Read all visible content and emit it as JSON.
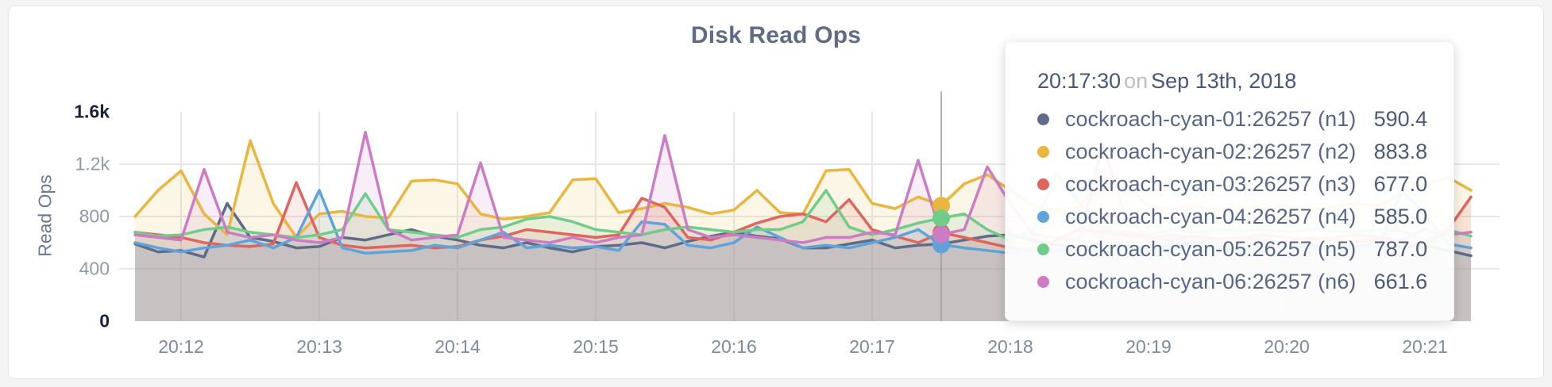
{
  "page": {
    "background": "#f4f4f5",
    "card_background": "#ffffff",
    "card_border": "#e3e3e5"
  },
  "chart_data": {
    "type": "area",
    "title": "Disk Read Ops",
    "ylabel": "Read Ops",
    "xlabel": "",
    "ylim": [
      0,
      1600
    ],
    "grid": true,
    "y_ticks": [
      {
        "value": 0,
        "label": "0",
        "emphasized": true
      },
      {
        "value": 400,
        "label": "400",
        "emphasized": false
      },
      {
        "value": 800,
        "label": "800",
        "emphasized": false
      },
      {
        "value": 1200,
        "label": "1.2k",
        "emphasized": false
      },
      {
        "value": 1600,
        "label": "1.6k",
        "emphasized": true
      }
    ],
    "x_tick_labels": [
      "20:12",
      "20:13",
      "20:14",
      "20:15",
      "20:16",
      "20:17",
      "20:18",
      "20:19",
      "20:20",
      "20:21"
    ],
    "x_interval_seconds": 10,
    "x_first_tick_index": 2,
    "x_ticks_every_n_points": 6,
    "hover_index": 35,
    "hover_time": "20:17:30",
    "series": [
      {
        "name": "cockroach-cyan-01:26257 (n1)",
        "color": "#5F6C87",
        "values": [
          590,
          530,
          540,
          490,
          900,
          640,
          610,
          560,
          570,
          640,
          620,
          660,
          700,
          650,
          620,
          580,
          560,
          600,
          560,
          530,
          570,
          580,
          600,
          560,
          610,
          650,
          680,
          650,
          630,
          560,
          560,
          590,
          620,
          560,
          580,
          590,
          620,
          650,
          660,
          620,
          580,
          560,
          590,
          570,
          560,
          580,
          600,
          570,
          560,
          590,
          610,
          580,
          560,
          570,
          590,
          560,
          580,
          540,
          500
        ]
      },
      {
        "name": "cockroach-cyan-02:26257 (n2)",
        "color": "#E9B63F",
        "values": [
          800,
          1000,
          1150,
          820,
          660,
          1380,
          900,
          640,
          820,
          840,
          800,
          790,
          1070,
          1080,
          1050,
          820,
          780,
          800,
          830,
          1080,
          1090,
          830,
          860,
          900,
          870,
          820,
          850,
          1000,
          830,
          820,
          1150,
          1160,
          900,
          860,
          950,
          884,
          1050,
          1120,
          1000,
          880,
          850,
          870,
          1100,
          1050,
          880,
          860,
          880,
          850,
          870,
          860,
          880,
          850,
          870,
          900,
          880,
          980,
          1050,
          1100,
          1000
        ]
      },
      {
        "name": "cockroach-cyan-03:26257 (n3)",
        "color": "#DF655E",
        "values": [
          680,
          660,
          640,
          600,
          580,
          570,
          590,
          1060,
          640,
          580,
          560,
          570,
          580,
          560,
          570,
          620,
          650,
          700,
          680,
          660,
          640,
          660,
          940,
          870,
          640,
          620,
          680,
          750,
          800,
          820,
          760,
          930,
          700,
          650,
          600,
          677,
          640,
          600,
          560,
          540,
          620,
          700,
          680,
          660,
          640,
          620,
          650,
          630,
          640,
          620,
          600,
          640,
          620,
          600,
          630,
          610,
          580,
          700,
          950
        ]
      },
      {
        "name": "cockroach-cyan-04:26257 (n4)",
        "color": "#5FA3DA",
        "values": [
          600,
          560,
          530,
          560,
          580,
          620,
          560,
          640,
          1000,
          560,
          520,
          530,
          540,
          580,
          560,
          620,
          680,
          560,
          580,
          560,
          570,
          540,
          760,
          740,
          580,
          560,
          600,
          720,
          640,
          560,
          580,
          560,
          600,
          640,
          700,
          585,
          560,
          540,
          520,
          560,
          540,
          560,
          580,
          560,
          540,
          560,
          580,
          560,
          540,
          560,
          580,
          560,
          540,
          560,
          580,
          1000,
          820,
          590,
          560
        ]
      },
      {
        "name": "cockroach-cyan-05:26257 (n5)",
        "color": "#70CC89",
        "values": [
          680,
          650,
          660,
          700,
          720,
          680,
          660,
          640,
          660,
          700,
          975,
          700,
          680,
          660,
          640,
          700,
          720,
          780,
          800,
          760,
          700,
          680,
          660,
          700,
          720,
          700,
          680,
          700,
          700,
          760,
          1000,
          720,
          660,
          700,
          750,
          787,
          820,
          700,
          620,
          700,
          1130,
          900,
          700,
          680,
          660,
          700,
          680,
          700,
          690,
          700,
          680,
          700,
          690,
          680,
          700,
          690,
          620,
          700,
          650
        ]
      },
      {
        "name": "cockroach-cyan-06:26257 (n6)",
        "color": "#CC7CC4",
        "values": [
          660,
          640,
          620,
          1160,
          680,
          640,
          660,
          620,
          600,
          640,
          1445,
          700,
          620,
          640,
          660,
          1210,
          640,
          620,
          600,
          640,
          600,
          640,
          660,
          1420,
          700,
          640,
          660,
          640,
          620,
          600,
          640,
          640,
          680,
          660,
          1230,
          662,
          700,
          1180,
          900,
          660,
          640,
          620,
          1350,
          800,
          640,
          660,
          640,
          620,
          640,
          660,
          640,
          620,
          640,
          660,
          640,
          620,
          700,
          660,
          680
        ]
      }
    ]
  },
  "tooltip": {
    "time": "20:17:30",
    "connector": "on",
    "date": "Sep 13th, 2018",
    "rows": [
      {
        "label": "cockroach-cyan-01:26257 (n1)",
        "value": "590.4",
        "color": "#5F6C87"
      },
      {
        "label": "cockroach-cyan-02:26257 (n2)",
        "value": "883.8",
        "color": "#E9B63F"
      },
      {
        "label": "cockroach-cyan-03:26257 (n3)",
        "value": "677.0",
        "color": "#DF655E"
      },
      {
        "label": "cockroach-cyan-04:26257 (n4)",
        "value": "585.0",
        "color": "#5FA3DA"
      },
      {
        "label": "cockroach-cyan-05:26257 (n5)",
        "value": "787.0",
        "color": "#70CC89"
      },
      {
        "label": "cockroach-cyan-06:26257 (n6)",
        "value": "661.6",
        "color": "#CC7CC4"
      }
    ]
  }
}
